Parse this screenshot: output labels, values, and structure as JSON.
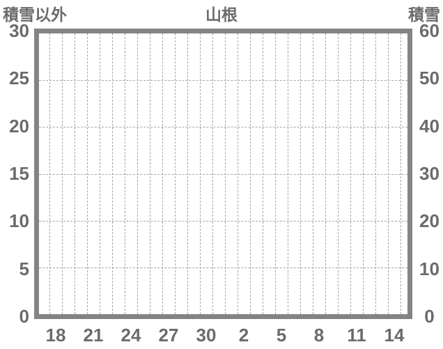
{
  "chart_data": {
    "type": "line",
    "title": "山根",
    "subtitle": "",
    "left_axis": {
      "label": "積雪以外",
      "min": 0,
      "max": 30,
      "ticks": [
        0,
        5,
        10,
        15,
        20,
        25,
        30
      ]
    },
    "right_axis": {
      "label": "積雪",
      "min": 0,
      "max": 60,
      "ticks": [
        0,
        10,
        20,
        30,
        40,
        50,
        60
      ]
    },
    "x_axis": {
      "tick_labels": [
        "18",
        "21",
        "24",
        "27",
        "30",
        "2",
        "5",
        "8",
        "11",
        "14"
      ],
      "gridlines_per_label": 3,
      "gridline_count": 29
    },
    "series": [],
    "grid": "dashed",
    "legend_position": "none"
  },
  "colors": {
    "frame": "#848484",
    "gridline": "#a6a6a6",
    "text": "#6b6b6b",
    "background": "#ffffff"
  }
}
